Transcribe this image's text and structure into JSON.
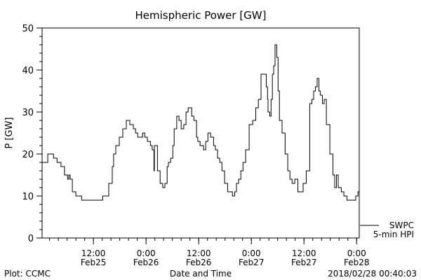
{
  "chart_data": {
    "type": "line",
    "title": "Hemispheric Power [GW]",
    "xlabel": "Date and Time",
    "ylabel": "P [GW]",
    "x_units": "hours since Feb25 0:00",
    "xlim": [
      0.3,
      72.6
    ],
    "ylim": [
      0,
      50
    ],
    "yticks": [
      0,
      10,
      20,
      30,
      40,
      50
    ],
    "xticks": [
      {
        "x": 12,
        "line1": "12:00",
        "line2": "Feb25"
      },
      {
        "x": 24,
        "line1": "0:00",
        "line2": "Feb26"
      },
      {
        "x": 36,
        "line1": "12:00",
        "line2": "Feb26"
      },
      {
        "x": 48,
        "line1": "0:00",
        "line2": "Feb27"
      },
      {
        "x": 60,
        "line1": "12:00",
        "line2": "Feb27"
      },
      {
        "x": 72,
        "line1": "0:00",
        "line2": "Feb28"
      }
    ],
    "grid": false,
    "legend": {
      "position": "bottom-right outside",
      "entries": [
        "SWPC",
        "5-min HPI"
      ]
    },
    "series": [
      {
        "name": "SWPC 5-min HPI",
        "x": [
          0.3,
          1.6,
          2.9,
          3.7,
          4.6,
          5.4,
          6.1,
          6.4,
          6.7,
          7.2,
          8.0,
          9.3,
          13.9,
          14.1,
          15.2,
          15.5,
          16.3,
          16.6,
          17.1,
          17.9,
          18.7,
          19.5,
          20.3,
          21.1,
          21.6,
          22.1,
          22.7,
          23.2,
          23.7,
          24.3,
          25.0,
          25.4,
          25.8,
          25.9,
          26.6,
          27.2,
          27.8,
          28.3,
          28.8,
          29.1,
          29.6,
          30.1,
          30.4,
          31.0,
          31.5,
          32.0,
          32.3,
          32.6,
          33.1,
          33.6,
          34.1,
          34.4,
          34.9,
          35.5,
          35.8,
          36.3,
          36.8,
          37.1,
          37.6,
          38.1,
          38.7,
          39.4,
          39.8,
          40.3,
          40.8,
          41.3,
          41.9,
          42.6,
          43.2,
          43.7,
          44.2,
          44.6,
          45.1,
          45.6,
          46.1,
          46.7,
          47.5,
          48.3,
          49.0,
          49.6,
          50.2,
          50.9,
          51.4,
          51.7,
          51.8,
          52.2,
          52.5,
          52.8,
          53.1,
          53.4,
          53.8,
          54.1,
          54.4,
          55.0,
          55.7,
          56.3,
          56.8,
          57.3,
          57.9,
          58.6,
          59.4,
          59.8,
          60.5,
          61.3,
          61.8,
          62.2,
          62.6,
          63.0,
          63.4,
          63.7,
          64.2,
          64.6,
          65.1,
          65.9,
          66.6,
          67.0,
          67.4,
          67.8,
          68.5,
          69.1,
          69.8,
          71.5,
          71.8,
          72.3,
          72.6
        ],
        "y": [
          18,
          20,
          19,
          18,
          17,
          15,
          14,
          15,
          14,
          11,
          10,
          9,
          9,
          10,
          10,
          13,
          17,
          20,
          22,
          24,
          26,
          28,
          27,
          26,
          25,
          24,
          24,
          25,
          24,
          23,
          22,
          21,
          16,
          22,
          16,
          13,
          12,
          13,
          17,
          18,
          19,
          22,
          26,
          29,
          28,
          26,
          26,
          27,
          30,
          31,
          31,
          29,
          28,
          24,
          23,
          22,
          22,
          21,
          23,
          25,
          24,
          22,
          21,
          19,
          18,
          16,
          13,
          11,
          11,
          10,
          11,
          13,
          14,
          16,
          18,
          21,
          27,
          28,
          31,
          33,
          39,
          39,
          36,
          33,
          30,
          29,
          33,
          39,
          41,
          46,
          43,
          35,
          28,
          25,
          20,
          16,
          14,
          13,
          14,
          11,
          11,
          13,
          16,
          32,
          33,
          35,
          36,
          38,
          35,
          34,
          32,
          33,
          27,
          20,
          15,
          12,
          15,
          12,
          11,
          10,
          9,
          9,
          10,
          11,
          12
        ]
      }
    ]
  },
  "footer": {
    "left": "Plot: CCMC",
    "timestamp": "2018/02/28 00:40:03"
  }
}
